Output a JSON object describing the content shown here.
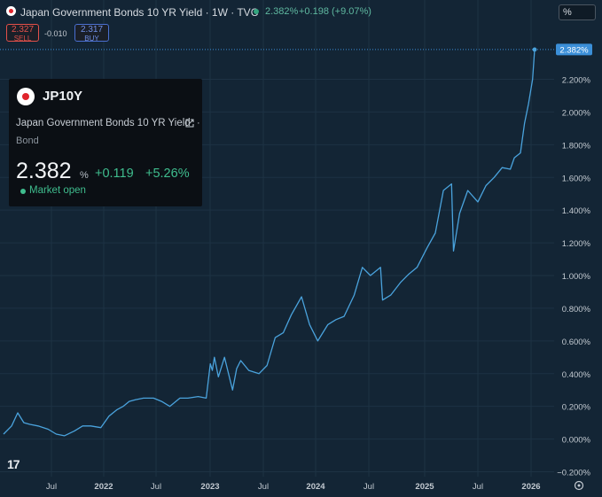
{
  "header": {
    "title": "Japan Government Bonds 10 YR Yield · 1W · TVC",
    "price": "2.382%",
    "change": "+0.198 (+9.07%)",
    "unit_button": "%"
  },
  "trade": {
    "sell_price": "2.327",
    "sell_label": "SELL",
    "spread": "-0.010",
    "buy_price": "2.317",
    "buy_label": "BUY"
  },
  "info": {
    "symbol": "JP10Y",
    "name": "Japan Government Bonds 10 YR Yield",
    "dots": "·",
    "type": "Bond",
    "price": "2.382",
    "unit": "%",
    "change": "+0.119",
    "change_pct": "+5.26%",
    "status": "Market open"
  },
  "logo": "17",
  "colors": {
    "background": "#132535",
    "line": "#4aa3dd",
    "positive": "#3fbd8e",
    "sell": "#e2504a",
    "buy": "#4a6fd0",
    "last_price_label": "#3b8fd8"
  },
  "chart_data": {
    "type": "line",
    "x_tick_labels": [
      "Jul",
      "2022",
      "Jul",
      "2023",
      "Jul",
      "2024",
      "Jul",
      "2025",
      "Jul",
      "2026"
    ],
    "y_tick_labels": [
      "2.200%",
      "2.000%",
      "1.800%",
      "1.600%",
      "1.400%",
      "1.200%",
      "1.000%",
      "0.800%",
      "0.600%",
      "0.400%",
      "0.200%",
      "0.000%",
      "−0.200%"
    ],
    "ylim": [
      -0.2,
      2.45
    ],
    "last_value_label": "2.382%",
    "grid": true,
    "x_unit": "weeks",
    "series": [
      {
        "x": [
          "2021-01-04",
          "2021-02-01",
          "2021-02-22",
          "2021-03-15",
          "2021-04-05",
          "2021-05-03",
          "2021-06-07",
          "2021-07-05",
          "2021-08-02",
          "2021-09-06",
          "2021-10-04",
          "2021-11-01",
          "2021-12-06",
          "2022-01-03",
          "2022-01-31",
          "2022-02-21",
          "2022-03-14",
          "2022-04-04",
          "2022-05-02",
          "2022-06-06",
          "2022-07-04",
          "2022-08-01",
          "2022-09-05",
          "2022-10-03",
          "2022-11-07",
          "2022-12-05",
          "2022-12-19",
          "2022-12-26",
          "2023-01-02",
          "2023-01-16",
          "2023-02-06",
          "2023-03-06",
          "2023-03-20",
          "2023-04-03",
          "2023-05-01",
          "2023-06-05",
          "2023-07-03",
          "2023-07-31",
          "2023-08-28",
          "2023-09-25",
          "2023-10-30",
          "2023-11-27",
          "2023-12-25",
          "2024-01-29",
          "2024-02-26",
          "2024-03-25",
          "2024-04-29",
          "2024-05-27",
          "2024-06-24",
          "2024-07-29",
          "2024-08-05",
          "2024-09-02",
          "2024-10-07",
          "2024-11-04",
          "2024-12-02",
          "2025-01-06",
          "2025-02-03",
          "2025-03-03",
          "2025-03-31",
          "2025-04-07",
          "2025-04-28",
          "2025-05-26",
          "2025-06-30",
          "2025-07-28",
          "2025-08-25",
          "2025-09-22",
          "2025-10-20",
          "2025-11-03",
          "2025-11-24",
          "2025-12-08",
          "2025-12-22",
          "2026-01-05",
          "2026-01-12"
        ],
        "y": [
          0.03,
          0.08,
          0.16,
          0.1,
          0.09,
          0.08,
          0.06,
          0.03,
          0.02,
          0.05,
          0.08,
          0.08,
          0.07,
          0.14,
          0.18,
          0.2,
          0.23,
          0.24,
          0.25,
          0.25,
          0.23,
          0.2,
          0.25,
          0.25,
          0.26,
          0.25,
          0.46,
          0.42,
          0.5,
          0.38,
          0.5,
          0.3,
          0.43,
          0.48,
          0.42,
          0.4,
          0.45,
          0.62,
          0.65,
          0.76,
          0.87,
          0.7,
          0.6,
          0.7,
          0.73,
          0.75,
          0.88,
          1.05,
          1.0,
          1.05,
          0.85,
          0.88,
          0.96,
          1.01,
          1.05,
          1.17,
          1.26,
          1.52,
          1.56,
          1.15,
          1.38,
          1.52,
          1.45,
          1.55,
          1.6,
          1.66,
          1.65,
          1.72,
          1.75,
          1.93,
          2.05,
          2.2,
          2.382
        ]
      }
    ]
  }
}
